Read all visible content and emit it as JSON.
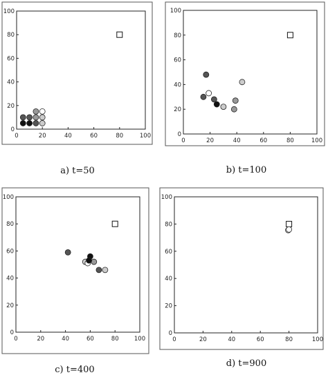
{
  "colors": {
    "black": "#111111",
    "dark": "#555555",
    "mid": "#999999",
    "light": "#cccccc",
    "white": "#ffffff",
    "target": "#ffffff"
  },
  "chart_data": [
    {
      "type": "scatter",
      "caption": "a) t=50",
      "xlim": [
        0,
        100
      ],
      "ylim": [
        0,
        100
      ],
      "xticks": [
        0,
        20,
        40,
        60,
        80,
        100
      ],
      "yticks": [
        0,
        20,
        40,
        60,
        80,
        100
      ],
      "target": {
        "x": 80,
        "y": 80,
        "marker": "square"
      },
      "points": [
        {
          "x": 5,
          "y": 10,
          "shade": "dark"
        },
        {
          "x": 10,
          "y": 10,
          "shade": "dark"
        },
        {
          "x": 15,
          "y": 10,
          "shade": "mid"
        },
        {
          "x": 20,
          "y": 10,
          "shade": "light"
        },
        {
          "x": 15,
          "y": 15,
          "shade": "mid"
        },
        {
          "x": 20,
          "y": 15,
          "shade": "white"
        },
        {
          "x": 5,
          "y": 5,
          "shade": "black"
        },
        {
          "x": 10,
          "y": 5,
          "shade": "black"
        },
        {
          "x": 15,
          "y": 5,
          "shade": "dark"
        },
        {
          "x": 20,
          "y": 5,
          "shade": "light"
        }
      ]
    },
    {
      "type": "scatter",
      "caption": "b) t=100",
      "xlim": [
        0,
        100
      ],
      "ylim": [
        0,
        100
      ],
      "xticks": [
        0,
        20,
        40,
        60,
        80,
        100
      ],
      "yticks": [
        0,
        20,
        40,
        60,
        80,
        100
      ],
      "target": {
        "x": 80,
        "y": 80,
        "marker": "square"
      },
      "points": [
        {
          "x": 17,
          "y": 48,
          "shade": "dark"
        },
        {
          "x": 44,
          "y": 42,
          "shade": "light"
        },
        {
          "x": 19,
          "y": 33,
          "shade": "white"
        },
        {
          "x": 15,
          "y": 30,
          "shade": "dark"
        },
        {
          "x": 23,
          "y": 28,
          "shade": "dark"
        },
        {
          "x": 39,
          "y": 27,
          "shade": "mid"
        },
        {
          "x": 25,
          "y": 24,
          "shade": "black"
        },
        {
          "x": 30,
          "y": 22,
          "shade": "light"
        },
        {
          "x": 38,
          "y": 20,
          "shade": "mid"
        }
      ]
    },
    {
      "type": "scatter",
      "caption": "c) t=400",
      "xlim": [
        0,
        100
      ],
      "ylim": [
        0,
        100
      ],
      "xticks": [
        0,
        20,
        40,
        60,
        80,
        100
      ],
      "yticks": [
        0,
        20,
        40,
        60,
        80,
        100
      ],
      "target": {
        "x": 80,
        "y": 80,
        "marker": "square"
      },
      "points": [
        {
          "x": 42,
          "y": 59,
          "shade": "dark"
        },
        {
          "x": 60,
          "y": 56,
          "shade": "black"
        },
        {
          "x": 56,
          "y": 52,
          "shade": "light"
        },
        {
          "x": 58,
          "y": 51,
          "shade": "white"
        },
        {
          "x": 63,
          "y": 52,
          "shade": "mid"
        },
        {
          "x": 59,
          "y": 53,
          "shade": "black"
        },
        {
          "x": 67,
          "y": 46,
          "shade": "dark"
        },
        {
          "x": 72,
          "y": 46,
          "shade": "light"
        }
      ]
    },
    {
      "type": "scatter",
      "caption": "d) t=900",
      "xlim": [
        0,
        100
      ],
      "ylim": [
        0,
        100
      ],
      "xticks": [
        0,
        20,
        40,
        60,
        80,
        100
      ],
      "yticks": [
        0,
        20,
        40,
        60,
        80,
        100
      ],
      "target": {
        "x": 80,
        "y": 80,
        "marker": "square"
      },
      "points": [
        {
          "x": 79.5,
          "y": 75.5,
          "shade": "white"
        },
        {
          "x": 80,
          "y": 76,
          "shade": "white"
        }
      ]
    }
  ]
}
